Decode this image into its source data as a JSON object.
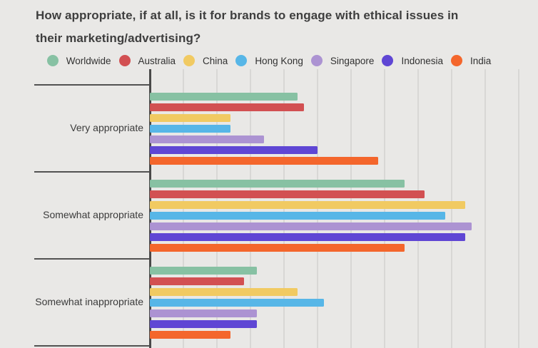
{
  "title": {
    "line1": "How appropriate, if at all, is it for brands to engage with ethical issues in",
    "line2": "their marketing/advertising?"
  },
  "colors": {
    "background": "#E9E8E6",
    "gridline": "#D8D7D5",
    "axis": "#4A4A4A",
    "divider": "#525252",
    "title_text": "#3E3E3E",
    "category_label_text": "#3B3B3B",
    "legend_text": "#313131"
  },
  "chart_data": {
    "type": "bar",
    "orientation": "horizontal",
    "title": "How appropriate, if at all, is it for brands to engage with ethical issues in their marketing/advertising?",
    "categories": [
      "Very appropriate",
      "Somewhat appropriate",
      "Somewhat inappropriate"
    ],
    "unit": "percent",
    "xlim": [
      0,
      57
    ],
    "gridline_interval": 5,
    "grid": true,
    "legend_position": "top",
    "axis_tick_labels_visible": false,
    "note": "chart cropped at bottom edge; a fourth category band begins below Somewhat inappropriate",
    "series": [
      {
        "name": "Worldwide",
        "color": "#87C1A3",
        "values": [
          22,
          38,
          16
        ]
      },
      {
        "name": "Australia",
        "color": "#D25052",
        "values": [
          23,
          41,
          14
        ]
      },
      {
        "name": "China",
        "color": "#F1CA62",
        "values": [
          12,
          47,
          22
        ]
      },
      {
        "name": "Hong Kong",
        "color": "#57B6E7",
        "values": [
          12,
          44,
          26
        ]
      },
      {
        "name": "Singapore",
        "color": "#AC93D2",
        "values": [
          17,
          48,
          16
        ]
      },
      {
        "name": "Indonesia",
        "color": "#5F46D4",
        "values": [
          25,
          47,
          16
        ]
      },
      {
        "name": "India",
        "color": "#F4662C",
        "values": [
          34,
          38,
          12
        ]
      }
    ]
  }
}
